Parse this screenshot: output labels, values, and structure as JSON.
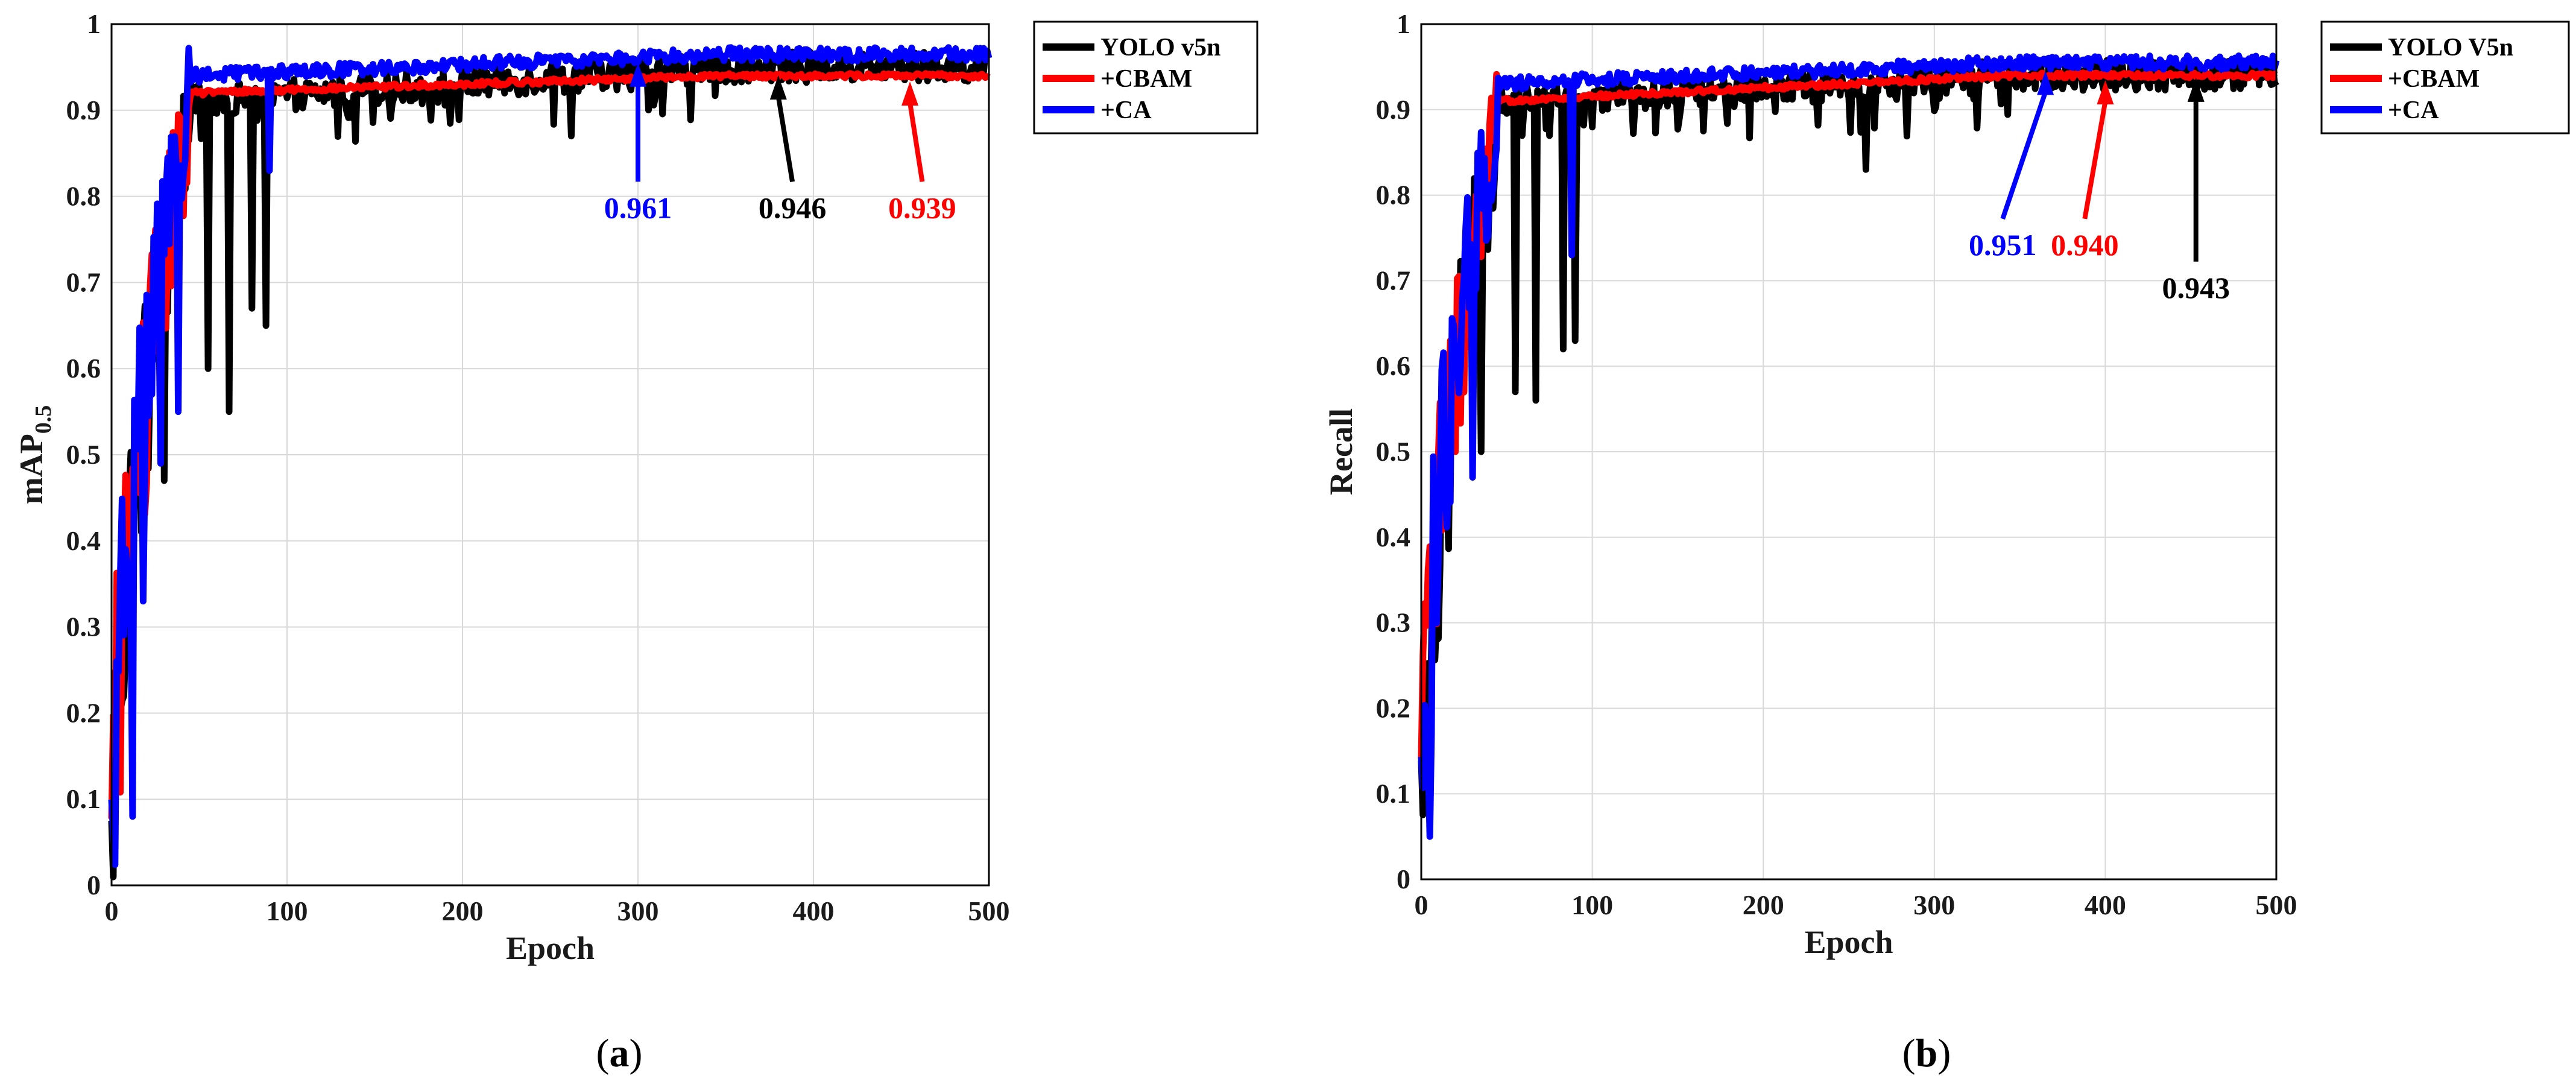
{
  "chart_data": [
    {
      "type": "line",
      "panel_label": "a",
      "xlabel": "Epoch",
      "ylabel_main": "mAP",
      "ylabel_sub": "0.5",
      "xlim": [
        0,
        500
      ],
      "ylim": [
        0,
        1
      ],
      "xticks": [
        "0",
        "100",
        "200",
        "300",
        "400",
        "500"
      ],
      "yticks": [
        "0",
        "0.1",
        "0.2",
        "0.3",
        "0.4",
        "0.5",
        "0.6",
        "0.7",
        "0.8",
        "0.9",
        "1"
      ],
      "grid": true,
      "legend_position": "outside-top-right",
      "series": [
        {
          "name": "YOLO v5n",
          "color": "#000000",
          "start": 0.0,
          "rise_to": 0.9,
          "plateau_early": 0.91,
          "plateau_late": 0.95,
          "noise": "high",
          "dips": [
            [
              30,
              0.47
            ],
            [
              55,
              0.6
            ],
            [
              67,
              0.55
            ],
            [
              80,
              0.67
            ],
            [
              88,
              0.65
            ],
            [
              262,
              0.87
            ]
          ]
        },
        {
          "name": "+CBAM",
          "color": "#ff0000",
          "start": 0.0,
          "rise_to": 0.9,
          "plateau_early": 0.92,
          "plateau_late": 0.94,
          "noise": "low",
          "dips": []
        },
        {
          "name": "+CA",
          "color": "#0000ff",
          "start": 0.02,
          "rise_to": 0.93,
          "plateau_early": 0.94,
          "plateau_late": 0.965,
          "noise": "medium",
          "dips": [
            [
              12,
              0.08
            ],
            [
              18,
              0.33
            ],
            [
              28,
              0.49
            ],
            [
              38,
              0.55
            ],
            [
              90,
              0.83
            ]
          ]
        }
      ],
      "annotations": [
        {
          "text": "0.961",
          "color": "#0000ff",
          "epoch": 300,
          "value": 0.961,
          "label_y": 0.775,
          "text_epoch": 300
        },
        {
          "text": "0.946",
          "color": "#000000",
          "epoch": 380,
          "value": 0.946,
          "label_y": 0.775,
          "text_epoch": 388
        },
        {
          "text": "0.939",
          "color": "#ff0000",
          "epoch": 455,
          "value": 0.939,
          "label_y": 0.775,
          "text_epoch": 462
        }
      ]
    },
    {
      "type": "line",
      "panel_label": "b",
      "xlabel": "Epoch",
      "ylabel_main": "Recall",
      "ylabel_sub": "",
      "xlim": [
        0,
        500
      ],
      "ylim": [
        0,
        1
      ],
      "xticks": [
        "0",
        "100",
        "200",
        "300",
        "400",
        "500"
      ],
      "yticks": [
        "0",
        "0.1",
        "0.2",
        "0.3",
        "0.4",
        "0.5",
        "0.6",
        "0.7",
        "0.8",
        "0.9",
        "1"
      ],
      "grid": true,
      "legend_position": "outside-top-right",
      "series": [
        {
          "name": "YOLO V5n",
          "color": "#000000",
          "start": 0.05,
          "rise_to": 0.88,
          "plateau_early": 0.91,
          "plateau_late": 0.94,
          "noise": "high",
          "dips": [
            [
              35,
              0.5
            ],
            [
              55,
              0.57
            ],
            [
              67,
              0.56
            ],
            [
              83,
              0.62
            ],
            [
              90,
              0.63
            ],
            [
              260,
              0.83
            ]
          ]
        },
        {
          "name": "+CBAM",
          "color": "#ff0000",
          "start": 0.05,
          "rise_to": 0.88,
          "plateau_early": 0.91,
          "plateau_late": 0.94,
          "noise": "low",
          "dips": []
        },
        {
          "name": "+CA",
          "color": "#0000ff",
          "start": 0.05,
          "rise_to": 0.9,
          "plateau_early": 0.93,
          "plateau_late": 0.955,
          "noise": "medium",
          "dips": [
            [
              5,
              0.05
            ],
            [
              10,
              0.37
            ],
            [
              20,
              0.6
            ],
            [
              30,
              0.47
            ],
            [
              88,
              0.73
            ]
          ]
        }
      ],
      "annotations": [
        {
          "text": "0.951",
          "color": "#0000ff",
          "epoch": 365,
          "value": 0.951,
          "label_y": 0.73,
          "text_epoch": 340
        },
        {
          "text": "0.940",
          "color": "#ff0000",
          "epoch": 400,
          "value": 0.94,
          "label_y": 0.73,
          "text_epoch": 388
        },
        {
          "text": "0.943",
          "color": "#000000",
          "epoch": 453,
          "value": 0.943,
          "label_y": 0.68,
          "text_epoch": 453
        }
      ]
    }
  ]
}
